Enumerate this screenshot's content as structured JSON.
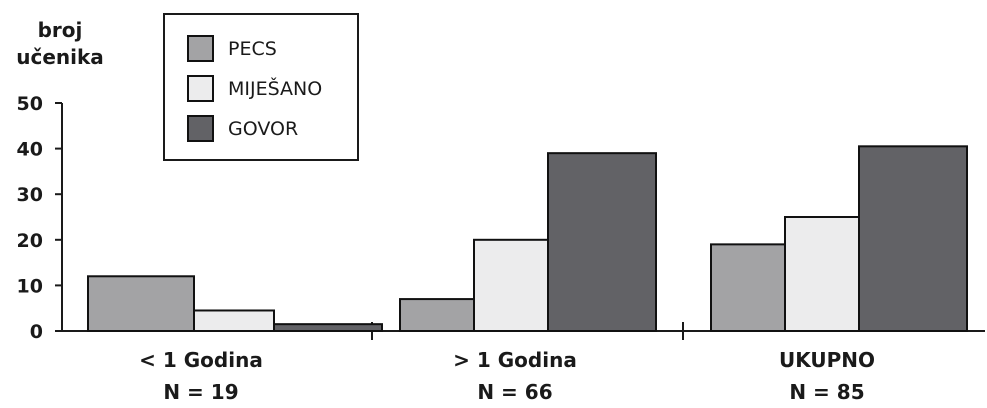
{
  "chart_data": {
    "type": "bar",
    "ylabel_lines": [
      "broj",
      "učenika"
    ],
    "ylim": [
      0,
      50
    ],
    "yticks": [
      0,
      10,
      20,
      30,
      40,
      50
    ],
    "categories": [
      {
        "line1": "< 1 Godina",
        "line2": "N = 19"
      },
      {
        "line1": "> 1 Godina",
        "line2": "N = 66"
      },
      {
        "line1": "UKUPNO",
        "line2": "N = 85"
      }
    ],
    "series": [
      {
        "name": "PECS",
        "color": "#a3a3a5",
        "values": [
          12,
          7,
          19
        ]
      },
      {
        "name": "MIJEŠANO",
        "color": "#ececed",
        "values": [
          4.5,
          20,
          25
        ]
      },
      {
        "name": "GOVOR",
        "color": "#626266",
        "values": [
          1.5,
          39,
          40.5
        ]
      }
    ],
    "legend_position": "top-left",
    "grid": false
  }
}
